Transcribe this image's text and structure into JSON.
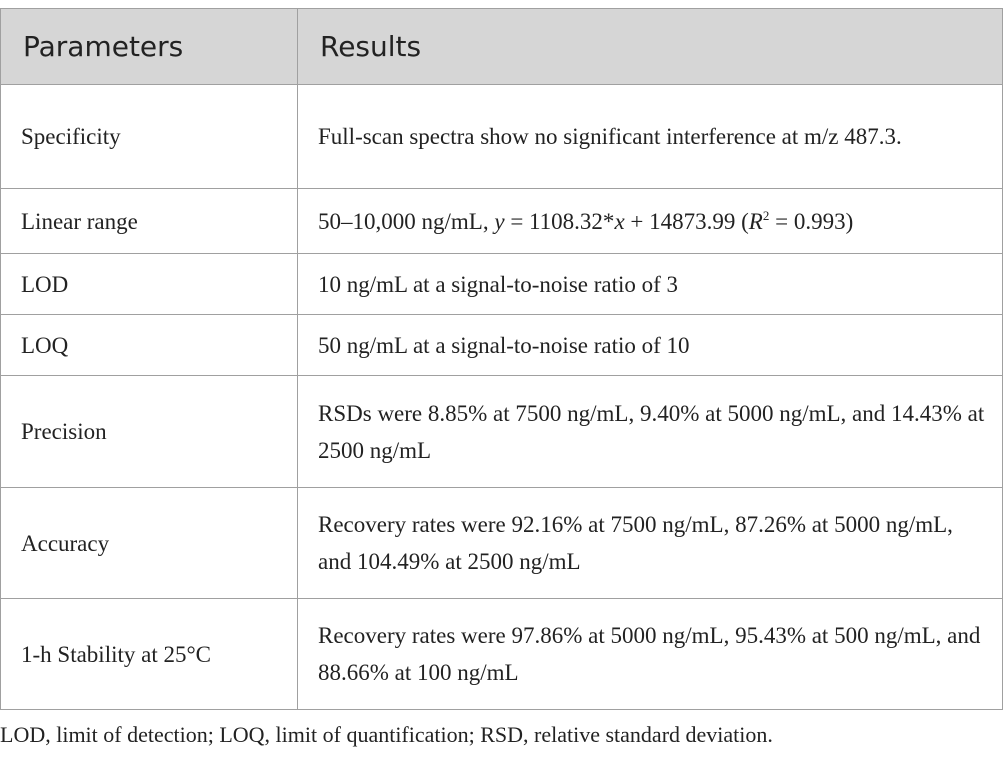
{
  "table": {
    "header": [
      "Parameters",
      "Results"
    ],
    "rows": [
      [
        "Specificity",
        "Full-scan spectra show no significant interference at m/z 487.3."
      ],
      [
        "Linear range",
        [
          "50–10,000 ng/mL, ",
          "y",
          " = 1108.32*",
          "x",
          " + 14873.99 (",
          "R",
          "2",
          " = 0.993)"
        ]
      ],
      [
        "LOD",
        "10 ng/mL at a signal-to-noise ratio of 3"
      ],
      [
        "LOQ",
        "50 ng/mL at a signal-to-noise ratio of 10"
      ],
      [
        "Precision",
        "RSDs were 8.85% at 7500 ng/mL, 9.40% at 5000 ng/mL, and 14.43% at 2500 ng/mL"
      ],
      [
        "Accuracy",
        "Recovery rates were 92.16% at 7500 ng/mL, 87.26% at 5000 ng/mL, and 104.49% at 2500 ng/mL"
      ],
      [
        "1-h Stability at 25°C",
        "Recovery rates were 97.86% at 5000 ng/mL, 95.43% at 500 ng/mL, and 88.66% at 100 ng/mL"
      ]
    ]
  },
  "footnote": "LOD, limit of detection; LOQ, limit of quantification; RSD, relative standard deviation."
}
